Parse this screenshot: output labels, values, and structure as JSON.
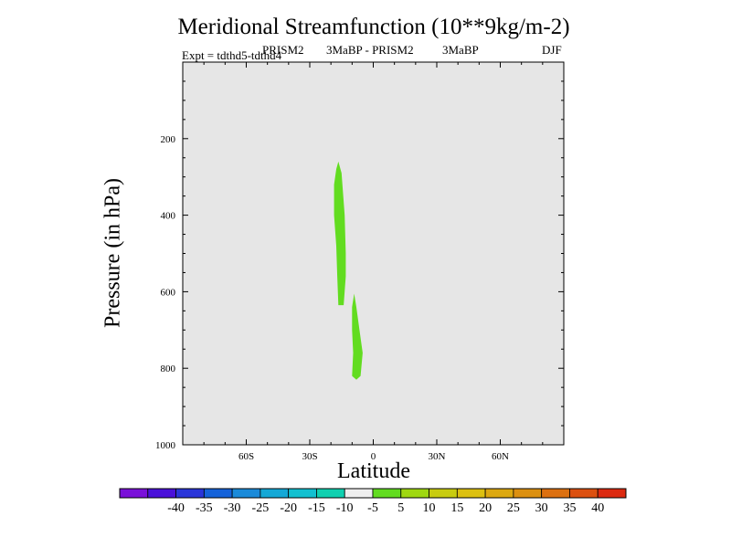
{
  "chart_data": {
    "type": "heatmap",
    "title": "Meridional Streamfunction (10**9kg/m-2)",
    "experiment": "Expt = tdthd5-tdthd4",
    "model": "PRISM2",
    "difference": "3MaBP - PRISM2",
    "period": "3MaBP",
    "season": "DJF",
    "xlabel": "Latitude",
    "ylabel": "Pressure (in hPa)",
    "xlim": [
      -90,
      90
    ],
    "ylim": [
      1000,
      0
    ],
    "x_ticks": [
      {
        "value": -60,
        "label": "60S"
      },
      {
        "value": -30,
        "label": "30S"
      },
      {
        "value": 0,
        "label": "0"
      },
      {
        "value": 30,
        "label": "30N"
      },
      {
        "value": 60,
        "label": "60N"
      }
    ],
    "y_ticks": [
      {
        "value": 200,
        "label": "200"
      },
      {
        "value": 400,
        "label": "400"
      },
      {
        "value": 600,
        "label": "600"
      },
      {
        "value": 800,
        "label": "800"
      },
      {
        "value": 1000,
        "label": "1000"
      }
    ],
    "background_color": "#e6e6e6",
    "colorbar": {
      "colors": [
        "#7a10d9",
        "#4a10d9",
        "#2a35d9",
        "#1562d9",
        "#1a8ad9",
        "#14a8d6",
        "#12c0d0",
        "#10d0b0",
        "#eeeeee",
        "#62dc20",
        "#9fd810",
        "#c8cc10",
        "#dcc010",
        "#dca810",
        "#dc9010",
        "#dc7010",
        "#dc5010",
        "#dc2a10"
      ],
      "labels": [
        "-40",
        "-35",
        "-30",
        "-25",
        "-20",
        "-15",
        "-10",
        "-5",
        "5",
        "10",
        "15",
        "20",
        "25",
        "30",
        "35",
        "40"
      ]
    },
    "regions": [
      {
        "level": "5 to 10",
        "color": "#62dc20",
        "points": [
          [
            -16.5,
            260
          ],
          [
            -15,
            290
          ],
          [
            -13.5,
            400
          ],
          [
            -13,
            500
          ],
          [
            -13,
            560
          ],
          [
            -14,
            635
          ],
          [
            -16.5,
            635
          ],
          [
            -17,
            560
          ],
          [
            -17.5,
            480
          ],
          [
            -18.5,
            400
          ],
          [
            -18.5,
            320
          ],
          [
            -17.5,
            280
          ]
        ]
      },
      {
        "level": "5 to 10",
        "color": "#62dc20",
        "points": [
          [
            -9,
            605
          ],
          [
            -8,
            640
          ],
          [
            -6.5,
            700
          ],
          [
            -5,
            760
          ],
          [
            -6,
            820
          ],
          [
            -8,
            830
          ],
          [
            -10,
            820
          ],
          [
            -9.5,
            760
          ],
          [
            -10,
            700
          ],
          [
            -10,
            640
          ]
        ]
      }
    ]
  }
}
